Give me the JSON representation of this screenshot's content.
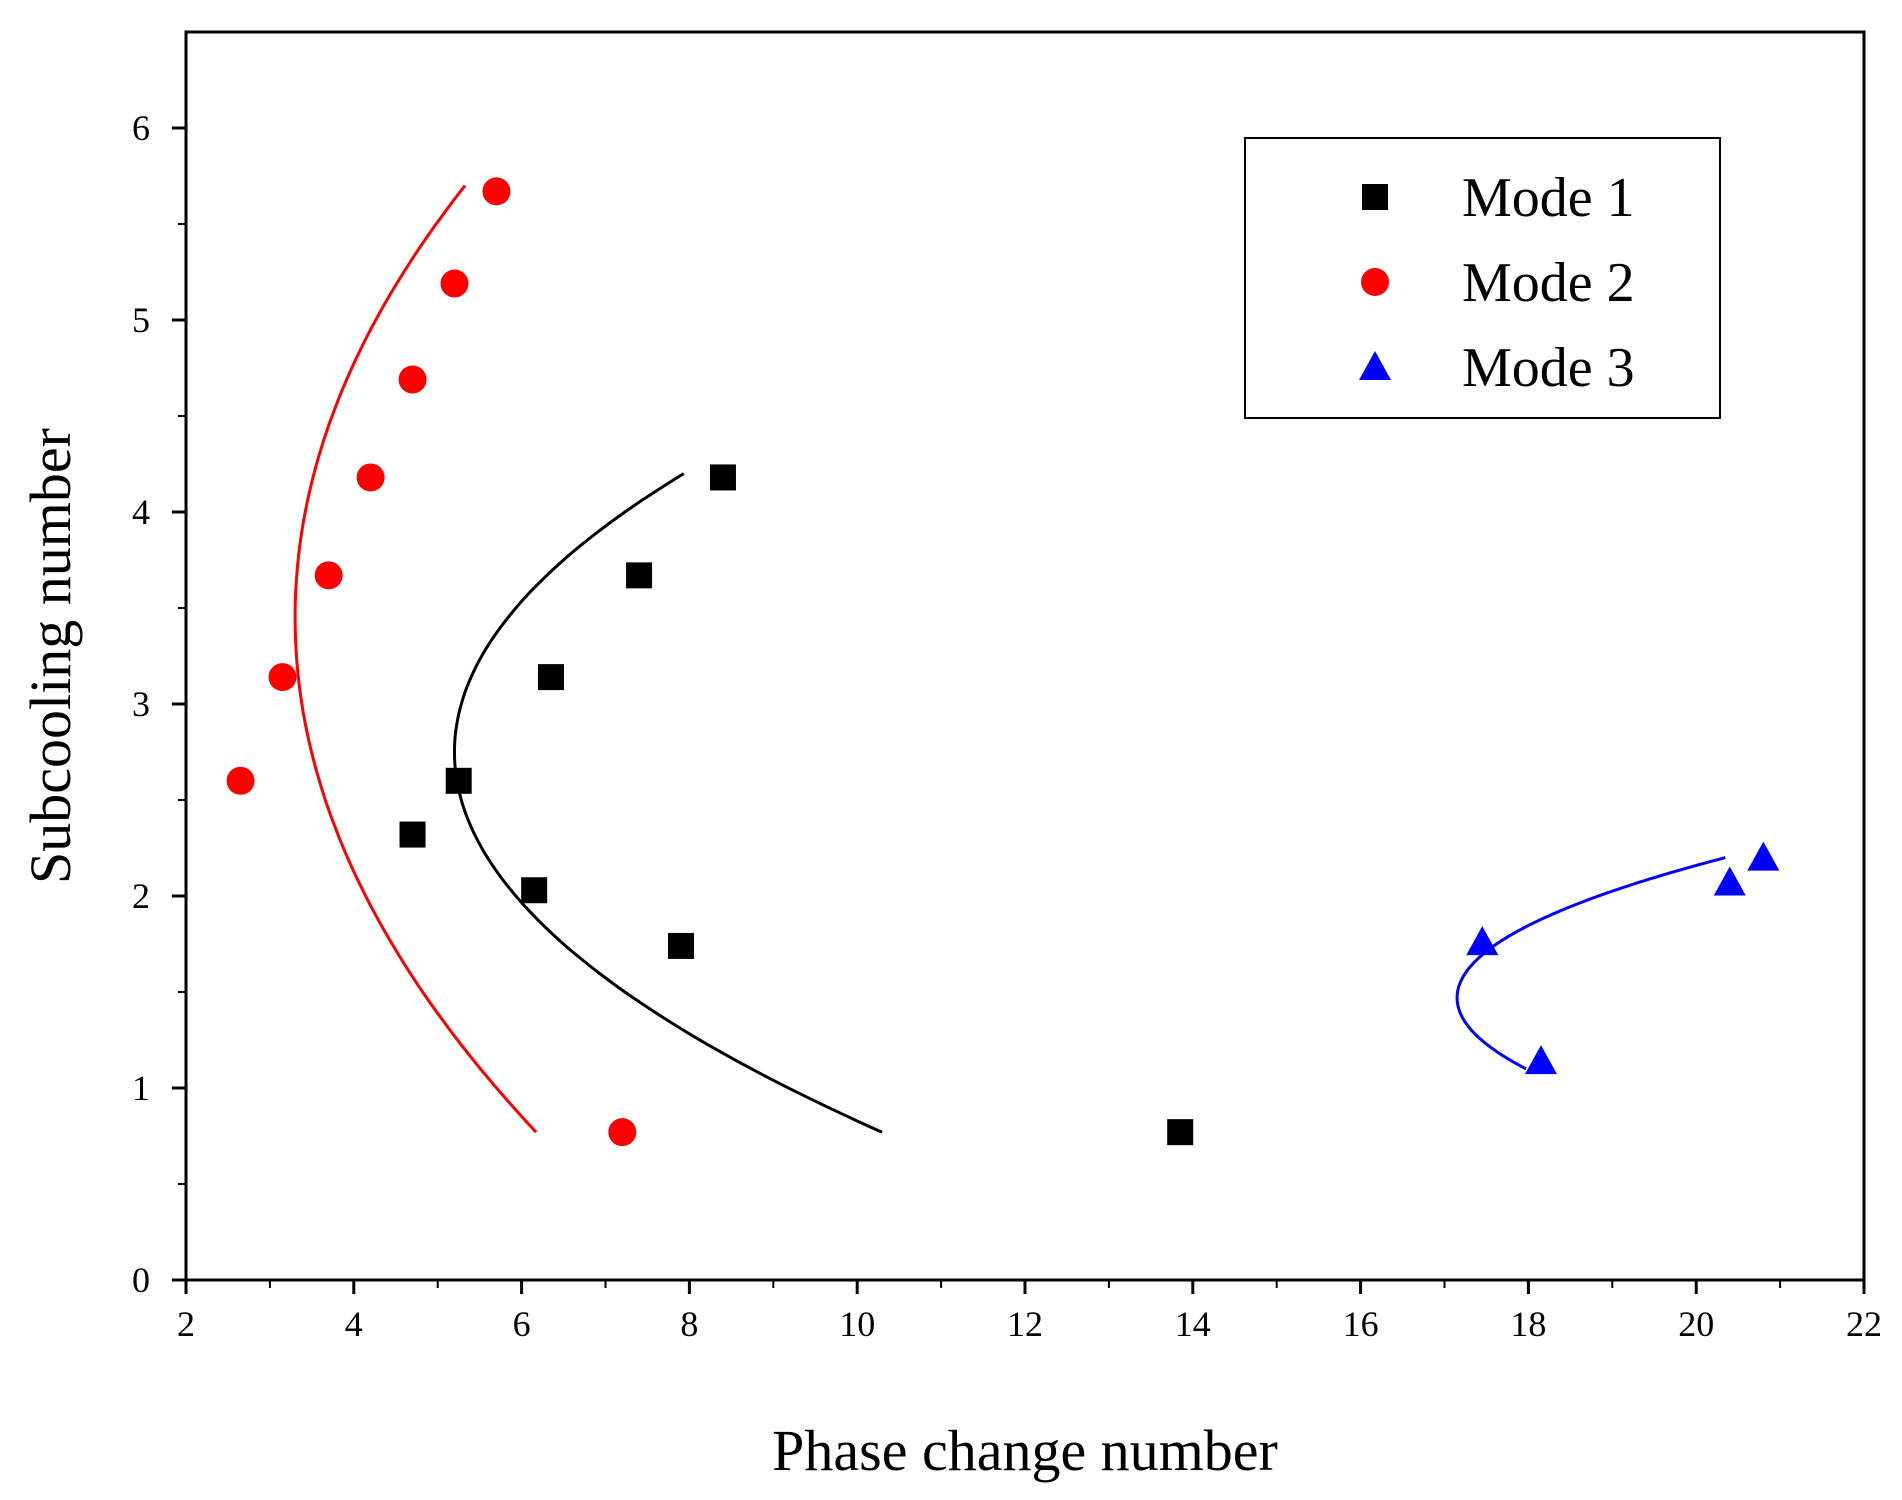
{
  "chart_data": {
    "type": "scatter",
    "title": "",
    "xlabel": "Phase change number",
    "ylabel": "Subcooling number",
    "xlim": [
      2,
      22
    ],
    "ylim": [
      0,
      6.5
    ],
    "xticks": [
      2,
      4,
      6,
      8,
      10,
      12,
      14,
      16,
      18,
      20,
      22
    ],
    "yticks": [
      0,
      1,
      2,
      3,
      4,
      5,
      6
    ],
    "grid": false,
    "legend_position": "top-right",
    "series": [
      {
        "name": "Mode 1",
        "marker": "square",
        "color": "#000000",
        "points": [
          [
            4.7,
            2.32
          ],
          [
            5.25,
            2.6
          ],
          [
            6.15,
            2.03
          ],
          [
            6.35,
            3.14
          ],
          [
            7.4,
            3.67
          ],
          [
            7.9,
            1.74
          ],
          [
            8.4,
            4.18
          ],
          [
            13.85,
            0.77
          ]
        ],
        "fit_curve": {
          "form": "x = a + b*(y - y0)^2",
          "a": 5.2,
          "b": 1.3,
          "y0": 2.75,
          "y_range": [
            0.77,
            4.2
          ]
        }
      },
      {
        "name": "Mode 2",
        "marker": "circle",
        "color": "#ff0000",
        "points": [
          [
            2.65,
            2.6
          ],
          [
            3.15,
            3.14
          ],
          [
            3.7,
            3.67
          ],
          [
            4.2,
            4.18
          ],
          [
            4.7,
            4.69
          ],
          [
            5.2,
            5.19
          ],
          [
            5.7,
            5.67
          ],
          [
            7.2,
            0.77
          ]
        ],
        "fit_curve": {
          "form": "x = a + b*(y - y0)^2",
          "a": 3.3,
          "b": 0.4,
          "y0": 3.45,
          "y_range": [
            0.77,
            5.7
          ]
        }
      },
      {
        "name": "Mode 3",
        "marker": "triangle",
        "color": "#0000ff",
        "points": [
          [
            17.45,
            1.76
          ],
          [
            18.15,
            1.14
          ],
          [
            20.4,
            2.07
          ],
          [
            20.8,
            2.2
          ]
        ],
        "fit_curve": {
          "form": "x = a + b*(y - y0)^2",
          "a": 17.15,
          "b": 6.0,
          "y0": 1.47,
          "y_range": [
            1.1,
            2.2
          ]
        }
      }
    ]
  }
}
